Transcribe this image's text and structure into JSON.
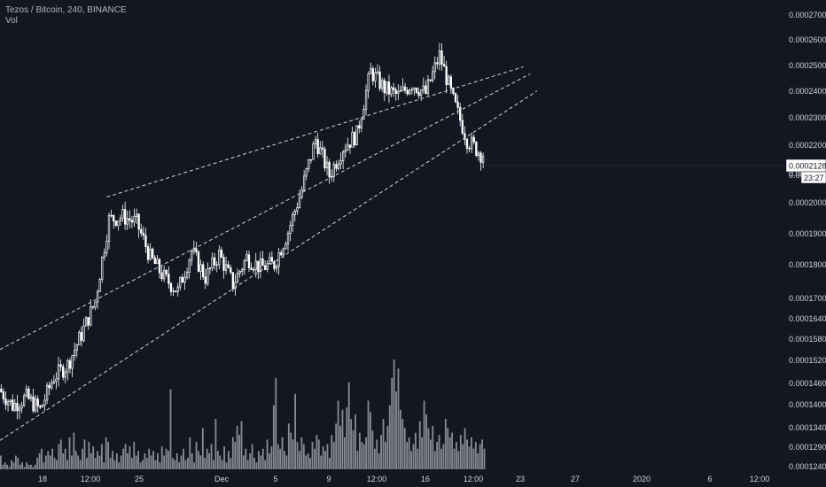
{
  "legend": {
    "symbol": "Tezos / Bitcoin, 240, BINANCE",
    "volume": "Vol"
  },
  "price_tag": {
    "value": "0.0002128",
    "countdown": "23:27",
    "hidden_under": "0.000210"
  },
  "colors": {
    "background": "#131722",
    "candle": "#ffffff",
    "volume": "#9598a1",
    "trendline": "#d1d4dc",
    "axis_text": "#d1d4dc"
  },
  "chart_data": {
    "type": "candlestick",
    "title": "Tezos / Bitcoin, 240, BINANCE",
    "y_scale": "log",
    "ylim": [
      0.000116,
      0.00028
    ],
    "y_ticks": [
      "0.0002700",
      "0.0002600",
      "0.0002500",
      "0.0002400",
      "0.0002300",
      "0.0002200",
      "0.0002100",
      "0.0002000",
      "0.0001900",
      "0.0001800",
      "0.0001700",
      "0.0001640",
      "0.0001580",
      "0.0001520",
      "0.0001460",
      "0.0001400",
      "0.0001340",
      "0.0001290",
      "0.0001240"
    ],
    "x_ticks": [
      "18",
      "12:00",
      "25",
      "Dec",
      "5",
      "9",
      "12:00",
      "16",
      "12:00",
      "23",
      "27",
      "2020",
      "6",
      "12:00"
    ],
    "x_tick_dates": [
      "2019-11-18",
      "2019-11-22 12:00",
      "2019-11-25",
      "2019-12-01",
      "2019-12-05",
      "2019-12-09",
      "2019-12-12 12:00",
      "2019-12-16",
      "2019-12-19 12:00",
      "2019-12-23",
      "2019-12-27",
      "2020-01-01",
      "2020-01-06",
      "2020-01-09 12:00"
    ],
    "grid": false,
    "price_path": [
      [
        "2019-11-15 00:00",
        0.000142
      ],
      [
        "2019-11-16 00:00",
        0.000138
      ],
      [
        "2019-11-17 00:00",
        0.00014
      ],
      [
        "2019-11-18 00:00",
        0.000137
      ],
      [
        "2019-11-19 00:00",
        0.000145
      ],
      [
        "2019-11-20 00:00",
        0.000148
      ],
      [
        "2019-11-21 00:00",
        0.000156
      ],
      [
        "2019-11-22 00:00",
        0.000165
      ],
      [
        "2019-11-23 00:00",
        0.00019
      ],
      [
        "2019-11-24 00:00",
        0.000191
      ],
      [
        "2019-11-25 00:00",
        0.000189
      ],
      [
        "2019-11-26 00:00",
        0.000178
      ],
      [
        "2019-11-27 00:00",
        0.000172
      ],
      [
        "2019-11-28 00:00",
        0.000168
      ],
      [
        "2019-11-29 00:00",
        0.00018
      ],
      [
        "2019-11-30 00:00",
        0.000172
      ],
      [
        "2019-12-01 00:00",
        0.000179
      ],
      [
        "2019-12-02 00:00",
        0.00017
      ],
      [
        "2019-12-03 00:00",
        0.000178
      ],
      [
        "2019-12-04 00:00",
        0.000175
      ],
      [
        "2019-12-05 00:00",
        0.000176
      ],
      [
        "2019-12-06 00:00",
        0.000186
      ],
      [
        "2019-12-07 00:00",
        0.0002
      ],
      [
        "2019-12-08 00:00",
        0.000218
      ],
      [
        "2019-12-09 00:00",
        0.000205
      ],
      [
        "2019-12-10 00:00",
        0.000215
      ],
      [
        "2019-12-11 00:00",
        0.00022
      ],
      [
        "2019-12-12 00:00",
        0.000245
      ],
      [
        "2019-12-13 00:00",
        0.000238
      ],
      [
        "2019-12-14 00:00",
        0.000235
      ],
      [
        "2019-12-15 00:00",
        0.00024
      ],
      [
        "2019-12-16 00:00",
        0.000236
      ],
      [
        "2019-12-17 00:00",
        0.000252
      ],
      [
        "2019-12-18 00:00",
        0.000233
      ],
      [
        "2019-12-19 00:00",
        0.000218
      ],
      [
        "2019-12-20 00:00",
        0.0002128
      ]
    ],
    "volume_series": {
      "name": "Vol",
      "values": [
        6,
        2,
        3,
        2,
        1,
        4,
        3,
        6,
        5,
        2,
        3,
        1,
        3,
        2,
        2,
        1,
        2,
        5,
        7,
        9,
        3,
        6,
        8,
        6,
        9,
        5,
        4,
        11,
        13,
        7,
        9,
        4,
        14,
        6,
        16,
        8,
        6,
        4,
        9,
        13,
        5,
        12,
        7,
        10,
        5,
        8,
        6,
        11,
        3,
        14,
        12,
        5,
        8,
        4,
        7,
        3,
        6,
        9,
        11,
        7,
        10,
        5,
        12,
        6,
        8,
        3,
        4,
        7,
        5,
        9,
        6,
        8,
        4,
        7,
        3,
        10,
        6,
        9,
        8,
        35,
        5,
        4,
        7,
        3,
        6,
        9,
        4,
        5,
        14,
        7,
        3,
        12,
        8,
        6,
        18,
        5,
        9,
        7,
        11,
        4,
        22,
        8,
        6,
        4,
        10,
        3,
        8,
        5,
        14,
        12,
        19,
        15,
        21,
        6,
        9,
        4,
        7,
        11,
        5,
        3,
        8,
        6,
        9,
        4,
        13,
        7,
        10,
        28,
        40,
        11,
        9,
        14,
        8,
        6,
        20,
        16,
        13,
        33,
        12,
        8,
        14,
        11,
        6,
        7,
        5,
        12,
        9,
        15,
        13,
        6,
        10,
        8,
        11,
        5,
        15,
        12,
        20,
        30,
        19,
        26,
        14,
        27,
        38,
        22,
        17,
        24,
        8,
        16,
        12,
        11,
        14,
        30,
        25,
        17,
        9,
        13,
        7,
        15,
        22,
        12,
        19,
        28,
        40,
        48,
        34,
        44,
        26,
        22,
        18,
        12,
        14,
        8,
        11,
        16,
        9,
        21,
        14,
        30,
        24,
        18,
        13,
        19,
        8,
        12,
        15,
        9,
        11,
        22,
        18,
        14,
        16,
        9,
        12,
        8,
        15,
        11,
        18,
        13,
        10,
        14,
        9,
        12,
        7,
        11,
        13,
        9
      ]
    },
    "trendlines": [
      {
        "from": [
          "2019-11-22 18:00",
          0.0001975
        ],
        "to": [
          "2019-12-23 00:00",
          0.000247
        ]
      },
      {
        "from": [
          "2019-11-15 00:00",
          0.000152
        ],
        "to": [
          "2019-12-23 12:00",
          0.000244
        ]
      },
      {
        "from": [
          "2019-11-15 00:00",
          0.00013
        ],
        "to": [
          "2019-12-24 00:00",
          0.000237
        ]
      }
    ]
  }
}
